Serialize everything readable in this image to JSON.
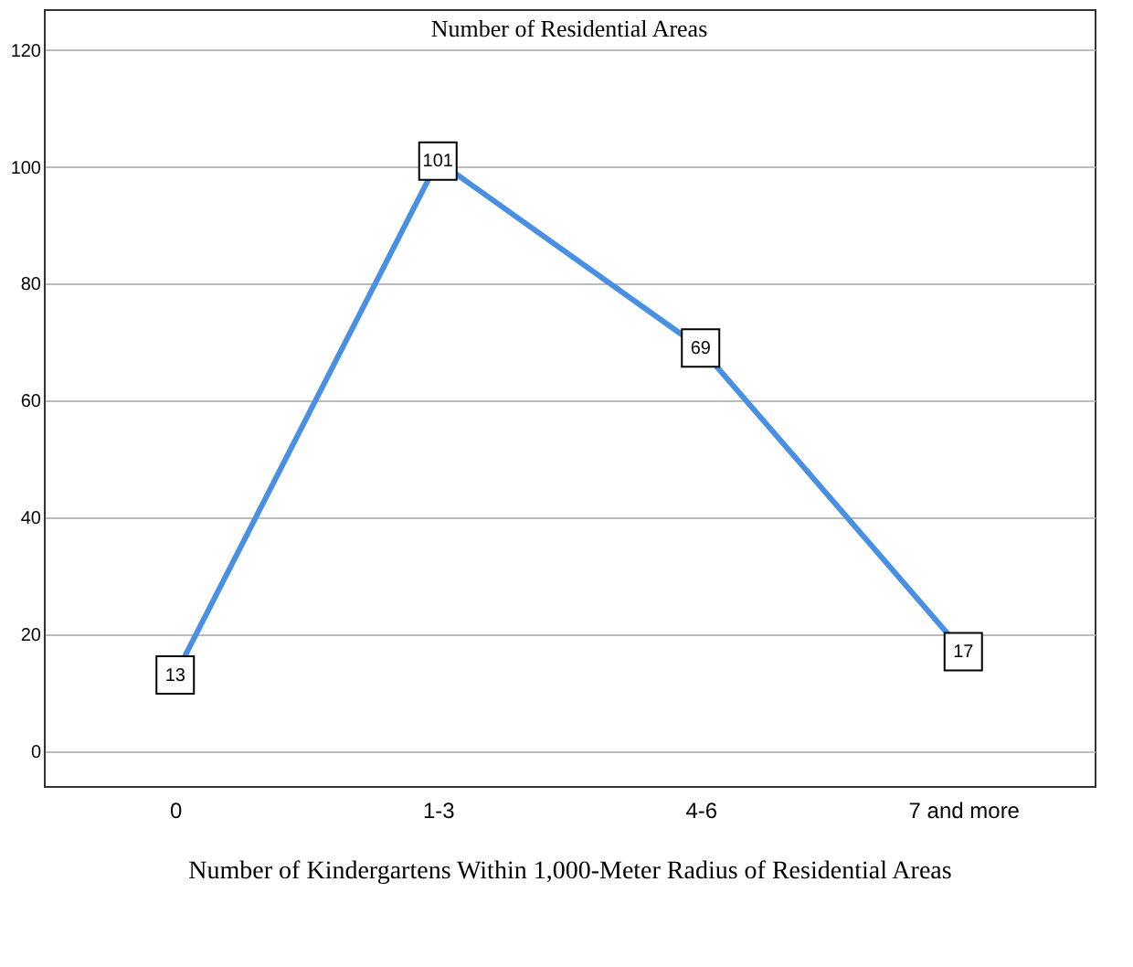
{
  "chart_data": {
    "type": "line",
    "title": "Number of Residential Areas",
    "xlabel": "Number of Kindergartens Within 1,000-Meter Radius of Residential Areas",
    "categories": [
      "0",
      "1-3",
      "4-6",
      "7 and more"
    ],
    "series": [
      {
        "color": "#4a90e2",
        "values": [
          13,
          101,
          69,
          17
        ]
      }
    ],
    "ylim": [
      -6,
      127
    ],
    "yticks": [
      0,
      20,
      40,
      60,
      80,
      100,
      120
    ],
    "grid": "y",
    "data_labels": true,
    "marker": "square",
    "line_style": "solid"
  }
}
